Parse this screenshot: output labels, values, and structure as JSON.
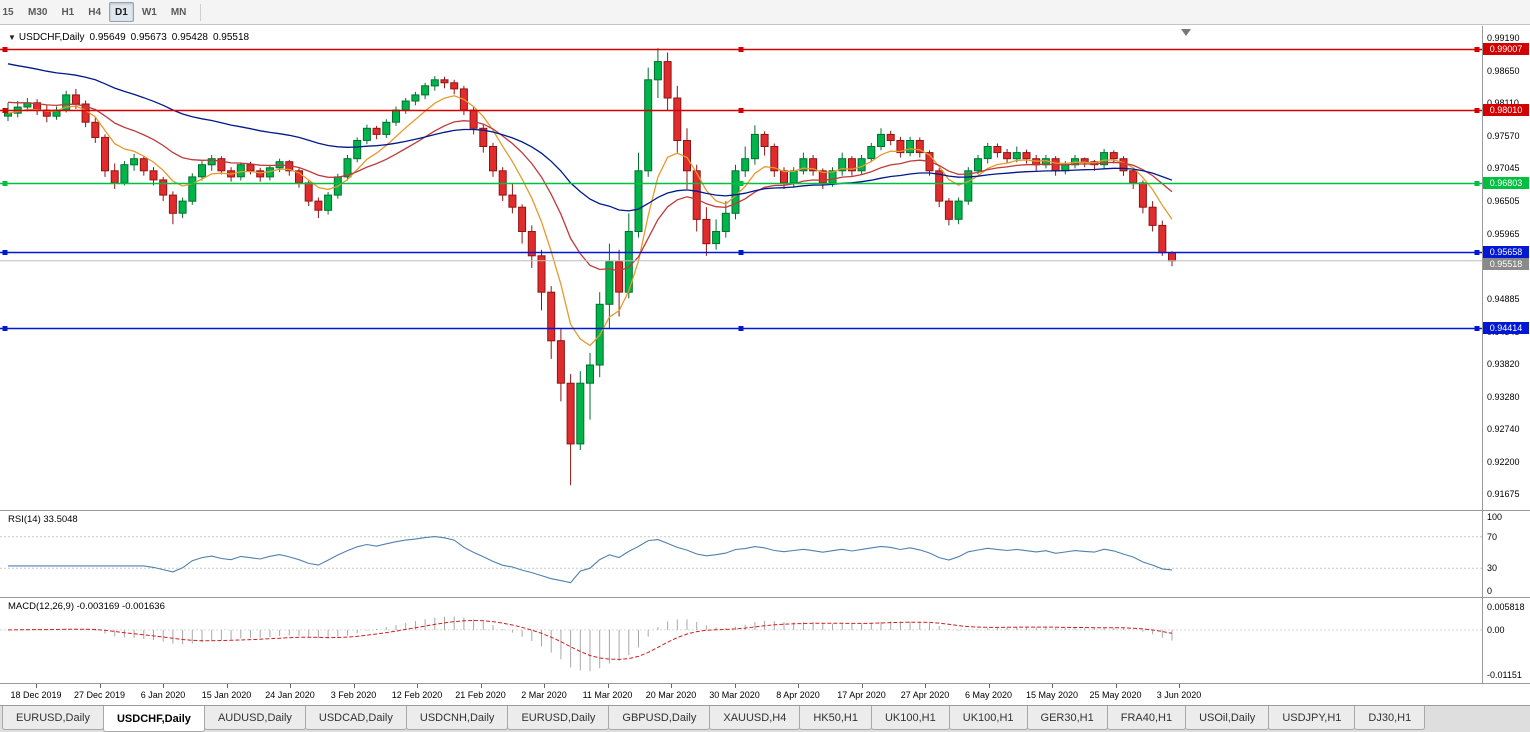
{
  "timeframe_toolbar": {
    "buttons": [
      {
        "label": "15",
        "active": false
      },
      {
        "label": "M30",
        "active": false
      },
      {
        "label": "H1",
        "active": false
      },
      {
        "label": "H4",
        "active": false
      },
      {
        "label": "D1",
        "active": true
      },
      {
        "label": "W1",
        "active": false
      },
      {
        "label": "MN",
        "active": false
      }
    ]
  },
  "main_chart": {
    "dropdown_icon": "▼",
    "title": "USDCHF,Daily",
    "ohlc": {
      "open": "0.95649",
      "high": "0.95673",
      "low": "0.95428",
      "close": "0.95518"
    },
    "price_axis": {
      "labels": [
        "0.99190",
        "0.98650",
        "0.98110",
        "0.97570",
        "0.97045",
        "0.96505",
        "0.95965",
        "0.95425",
        "0.94885",
        "0.94345",
        "0.93820",
        "0.93280",
        "0.92740",
        "0.92200",
        "0.91675"
      ],
      "top_price": 0.9932,
      "bottom_price": 0.9151
    },
    "hlines": [
      {
        "price": 0.99007,
        "label": "0.99007",
        "color": "#d40000"
      },
      {
        "price": 0.9801,
        "label": "0.98010",
        "color": "#d40000"
      },
      {
        "price": 0.96803,
        "label": "0.96803",
        "color": "#00c040"
      },
      {
        "price": 0.95658,
        "label": "0.95658",
        "color": "#0018d4"
      },
      {
        "price": 0.94414,
        "label": "0.94414",
        "color": "#0018d4"
      }
    ],
    "current_price": {
      "price": 0.95518,
      "label": "0.95518",
      "tag_color": "#8a8a8a",
      "line_color": "#bdbdbd"
    }
  },
  "rsi_panel": {
    "label": "RSI(14) 33.5048",
    "period": 14,
    "value": 33.5048,
    "levels": [
      70,
      30
    ],
    "axis_labels": [
      {
        "value": 100,
        "text": "100"
      },
      {
        "value": 70,
        "text": "70"
      },
      {
        "value": 30,
        "text": "30"
      },
      {
        "value": 0,
        "text": "0"
      }
    ],
    "line_color": "#4f81b0"
  },
  "macd_panel": {
    "label": "MACD(12,26,9) -0.003169 -0.001636",
    "main_value": "-0.003169",
    "signal_value": "-0.001636",
    "axis_labels": [
      {
        "value": 0.005818,
        "text": "0.005818"
      },
      {
        "value": 0,
        "text": "0.00"
      },
      {
        "value": -0.01151,
        "text": "-0.01151"
      }
    ],
    "range": {
      "max": 0.0077,
      "min": -0.0124
    },
    "histogram_color": "#a8a8a8",
    "signal_color": "#cc2222"
  },
  "date_axis": {
    "labels": [
      "18 Dec 2019",
      "27 Dec 2019",
      "6 Jan 2020",
      "15 Jan 2020",
      "24 Jan 2020",
      "3 Feb 2020",
      "12 Feb 2020",
      "21 Feb 2020",
      "2 Mar 2020",
      "11 Mar 2020",
      "20 Mar 2020",
      "30 Mar 2020",
      "8 Apr 2020",
      "17 Apr 2020",
      "27 Apr 2020",
      "6 May 2020",
      "15 May 2020",
      "25 May 2020",
      "3 Jun 2020"
    ]
  },
  "tab_bar": {
    "tabs": [
      {
        "label": "EURUSD,Daily",
        "active": false
      },
      {
        "label": "USDCHF,Daily",
        "active": true
      },
      {
        "label": "AUDUSD,Daily",
        "active": false
      },
      {
        "label": "USDCAD,Daily",
        "active": false
      },
      {
        "label": "USDCNH,Daily",
        "active": false
      },
      {
        "label": "EURUSD,Daily",
        "active": false
      },
      {
        "label": "GBPUSD,Daily",
        "active": false
      },
      {
        "label": "XAUUSD,H4",
        "active": false
      },
      {
        "label": "HK50,H1",
        "active": false
      },
      {
        "label": "UK100,H1",
        "active": false
      },
      {
        "label": "UK100,H1",
        "active": false
      },
      {
        "label": "GER30,H1",
        "active": false
      },
      {
        "label": "FRA40,H1",
        "active": false
      },
      {
        "label": "USOil,Daily",
        "active": false
      },
      {
        "label": "USDJPY,H1",
        "active": false
      },
      {
        "label": "DJ30,H1",
        "active": false
      }
    ]
  },
  "chart_data": {
    "type": "candlestick",
    "symbol": "USDCHF",
    "timeframe": "Daily",
    "x_range": [
      "18 Dec 2019",
      "3 Jun 2020"
    ],
    "price_range": [
      0.9151,
      0.9932
    ],
    "up_color": "#00b44c",
    "up_stroke": "#00702e",
    "down_color": "#e02c2c",
    "down_stroke": "#8f1414",
    "ma_lines": [
      {
        "name": "fast-ma",
        "period": 7,
        "seed": 0.9795,
        "color": "#e59a2e"
      },
      {
        "name": "medium-ma",
        "period": 18,
        "seed": 0.9815,
        "color": "#c03a3a"
      },
      {
        "name": "slow-ma",
        "period": 45,
        "seed": 0.988,
        "color": "#001a8c"
      }
    ],
    "candles": [
      [
        0.979,
        0.9812,
        0.9782,
        0.9795
      ],
      [
        0.9795,
        0.9815,
        0.9788,
        0.9805
      ],
      [
        0.9805,
        0.982,
        0.9798,
        0.9812
      ],
      [
        0.9812,
        0.9818,
        0.9792,
        0.98
      ],
      [
        0.98,
        0.9808,
        0.978,
        0.979
      ],
      [
        0.979,
        0.9806,
        0.9784,
        0.98
      ],
      [
        0.98,
        0.9832,
        0.9796,
        0.9825
      ],
      [
        0.9825,
        0.9835,
        0.9802,
        0.981
      ],
      [
        0.981,
        0.9816,
        0.9772,
        0.978
      ],
      [
        0.978,
        0.9788,
        0.9746,
        0.9755
      ],
      [
        0.9755,
        0.976,
        0.969,
        0.97
      ],
      [
        0.97,
        0.9712,
        0.967,
        0.968
      ],
      [
        0.968,
        0.9716,
        0.9676,
        0.971
      ],
      [
        0.971,
        0.9728,
        0.97,
        0.972
      ],
      [
        0.972,
        0.9724,
        0.9692,
        0.97
      ],
      [
        0.97,
        0.9706,
        0.9676,
        0.9685
      ],
      [
        0.9685,
        0.969,
        0.965,
        0.966
      ],
      [
        0.966,
        0.9666,
        0.9612,
        0.963
      ],
      [
        0.963,
        0.9656,
        0.9622,
        0.965
      ],
      [
        0.965,
        0.9696,
        0.9644,
        0.969
      ],
      [
        0.969,
        0.9716,
        0.9684,
        0.971
      ],
      [
        0.971,
        0.9726,
        0.97,
        0.972
      ],
      [
        0.972,
        0.9724,
        0.9694,
        0.97
      ],
      [
        0.97,
        0.9706,
        0.9682,
        0.969
      ],
      [
        0.969,
        0.9714,
        0.9684,
        0.971
      ],
      [
        0.971,
        0.9715,
        0.9694,
        0.97
      ],
      [
        0.97,
        0.9705,
        0.9682,
        0.969
      ],
      [
        0.969,
        0.971,
        0.9684,
        0.9705
      ],
      [
        0.9705,
        0.972,
        0.9698,
        0.9715
      ],
      [
        0.9715,
        0.9718,
        0.9692,
        0.97
      ],
      [
        0.97,
        0.9704,
        0.9672,
        0.968
      ],
      [
        0.968,
        0.9684,
        0.9642,
        0.965
      ],
      [
        0.965,
        0.9656,
        0.9622,
        0.9635
      ],
      [
        0.9635,
        0.9665,
        0.9628,
        0.966
      ],
      [
        0.966,
        0.9695,
        0.9654,
        0.969
      ],
      [
        0.969,
        0.9726,
        0.9684,
        0.972
      ],
      [
        0.972,
        0.9755,
        0.9714,
        0.975
      ],
      [
        0.975,
        0.9776,
        0.9744,
        0.977
      ],
      [
        0.977,
        0.9774,
        0.9752,
        0.976
      ],
      [
        0.976,
        0.9785,
        0.9754,
        0.978
      ],
      [
        0.978,
        0.9806,
        0.9774,
        0.98
      ],
      [
        0.98,
        0.982,
        0.9794,
        0.9815
      ],
      [
        0.9815,
        0.983,
        0.9808,
        0.9825
      ],
      [
        0.9825,
        0.9845,
        0.9818,
        0.984
      ],
      [
        0.984,
        0.9856,
        0.9832,
        0.985
      ],
      [
        0.985,
        0.9855,
        0.9836,
        0.9845
      ],
      [
        0.9845,
        0.985,
        0.9826,
        0.9835
      ],
      [
        0.9835,
        0.984,
        0.9792,
        0.98
      ],
      [
        0.98,
        0.9806,
        0.976,
        0.977
      ],
      [
        0.977,
        0.9776,
        0.973,
        0.974
      ],
      [
        0.974,
        0.9746,
        0.969,
        0.97
      ],
      [
        0.97,
        0.9706,
        0.965,
        0.966
      ],
      [
        0.966,
        0.968,
        0.963,
        0.964
      ],
      [
        0.964,
        0.9645,
        0.958,
        0.96
      ],
      [
        0.96,
        0.961,
        0.954,
        0.956
      ],
      [
        0.956,
        0.957,
        0.947,
        0.95
      ],
      [
        0.95,
        0.951,
        0.939,
        0.942
      ],
      [
        0.942,
        0.944,
        0.932,
        0.935
      ],
      [
        0.935,
        0.9365,
        0.9182,
        0.925
      ],
      [
        0.925,
        0.937,
        0.924,
        0.935
      ],
      [
        0.935,
        0.94,
        0.929,
        0.938
      ],
      [
        0.938,
        0.95,
        0.936,
        0.948
      ],
      [
        0.948,
        0.958,
        0.944,
        0.955
      ],
      [
        0.955,
        0.957,
        0.946,
        0.95
      ],
      [
        0.95,
        0.963,
        0.949,
        0.96
      ],
      [
        0.96,
        0.973,
        0.959,
        0.97
      ],
      [
        0.97,
        0.987,
        0.969,
        0.985
      ],
      [
        0.985,
        0.9902,
        0.982,
        0.988
      ],
      [
        0.988,
        0.9895,
        0.98,
        0.982
      ],
      [
        0.982,
        0.984,
        0.973,
        0.975
      ],
      [
        0.975,
        0.977,
        0.967,
        0.97
      ],
      [
        0.97,
        0.971,
        0.96,
        0.962
      ],
      [
        0.962,
        0.964,
        0.956,
        0.958
      ],
      [
        0.958,
        0.962,
        0.957,
        0.96
      ],
      [
        0.96,
        0.965,
        0.959,
        0.963
      ],
      [
        0.963,
        0.971,
        0.962,
        0.97
      ],
      [
        0.97,
        0.974,
        0.969,
        0.972
      ],
      [
        0.972,
        0.9775,
        0.971,
        0.976
      ],
      [
        0.976,
        0.9765,
        0.9725,
        0.974
      ],
      [
        0.974,
        0.9745,
        0.969,
        0.97
      ],
      [
        0.97,
        0.9706,
        0.967,
        0.968
      ],
      [
        0.968,
        0.9706,
        0.9672,
        0.97
      ],
      [
        0.97,
        0.973,
        0.9694,
        0.972
      ],
      [
        0.972,
        0.9726,
        0.9692,
        0.97
      ],
      [
        0.97,
        0.9704,
        0.967,
        0.968
      ],
      [
        0.968,
        0.9706,
        0.9674,
        0.97
      ],
      [
        0.97,
        0.973,
        0.9692,
        0.972
      ],
      [
        0.972,
        0.9724,
        0.9692,
        0.97
      ],
      [
        0.97,
        0.9726,
        0.9694,
        0.972
      ],
      [
        0.972,
        0.9746,
        0.9714,
        0.974
      ],
      [
        0.974,
        0.977,
        0.9734,
        0.976
      ],
      [
        0.976,
        0.9766,
        0.9742,
        0.975
      ],
      [
        0.975,
        0.9756,
        0.9722,
        0.973
      ],
      [
        0.973,
        0.9756,
        0.9724,
        0.975
      ],
      [
        0.975,
        0.9755,
        0.9722,
        0.973
      ],
      [
        0.973,
        0.9734,
        0.9692,
        0.97
      ],
      [
        0.97,
        0.9705,
        0.964,
        0.965
      ],
      [
        0.965,
        0.9655,
        0.961,
        0.962
      ],
      [
        0.962,
        0.9656,
        0.9612,
        0.965
      ],
      [
        0.965,
        0.9706,
        0.9644,
        0.97
      ],
      [
        0.97,
        0.9726,
        0.9694,
        0.972
      ],
      [
        0.972,
        0.9746,
        0.9712,
        0.974
      ],
      [
        0.974,
        0.9745,
        0.9722,
        0.973
      ],
      [
        0.973,
        0.9736,
        0.9712,
        0.972
      ],
      [
        0.972,
        0.974,
        0.9714,
        0.973
      ],
      [
        0.973,
        0.9735,
        0.9712,
        0.972
      ],
      [
        0.972,
        0.9726,
        0.97,
        0.971
      ],
      [
        0.971,
        0.9726,
        0.9704,
        0.972
      ],
      [
        0.972,
        0.9724,
        0.9692,
        0.97
      ],
      [
        0.97,
        0.9716,
        0.9694,
        0.971
      ],
      [
        0.971,
        0.9726,
        0.9704,
        0.972
      ],
      [
        0.972,
        0.9722,
        0.9706,
        0.9715
      ],
      [
        0.9715,
        0.9718,
        0.97,
        0.971
      ],
      [
        0.971,
        0.9736,
        0.9704,
        0.973
      ],
      [
        0.973,
        0.9734,
        0.9712,
        0.972
      ],
      [
        0.972,
        0.9724,
        0.9692,
        0.97
      ],
      [
        0.97,
        0.9704,
        0.967,
        0.968
      ],
      [
        0.968,
        0.9684,
        0.963,
        0.964
      ],
      [
        0.964,
        0.965,
        0.96,
        0.961
      ],
      [
        0.961,
        0.9618,
        0.956,
        0.9565
      ],
      [
        0.95649,
        0.95673,
        0.95428,
        0.95518
      ]
    ]
  }
}
